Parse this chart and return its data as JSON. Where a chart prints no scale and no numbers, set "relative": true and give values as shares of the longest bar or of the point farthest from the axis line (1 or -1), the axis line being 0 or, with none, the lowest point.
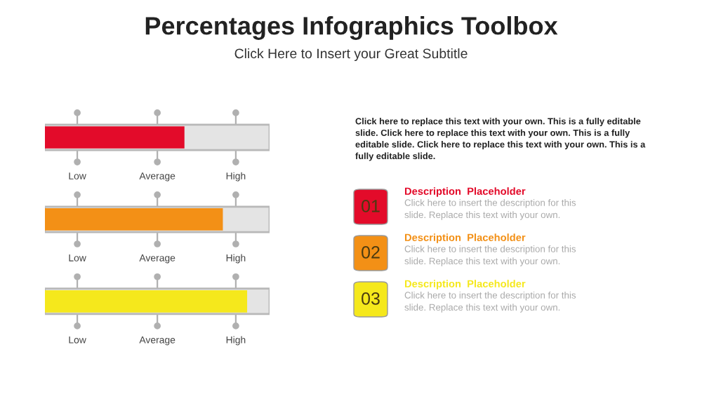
{
  "chart_data": {
    "type": "bar",
    "orientation": "horizontal",
    "relative": true,
    "title": "Percentages Infographics Toolbox",
    "subtitle": "Click Here to Insert your Great Subtitle",
    "categories": [
      null,
      null,
      null
    ],
    "values": [
      0.69,
      0.88,
      1
    ],
    "colors": [
      "#e30b2a",
      "#f39016",
      "#f5e81c"
    ],
    "annotations": [
      "Low",
      "Average",
      "High",
      "Click here to replace this text with your own. This is a fully editable\nslide. Click here to replace this text with your own. This is a fully\neditable slide. Click here to replace this text with your own. This is a\nfully editable slide.",
      "01",
      "Description  Placeholder",
      "Click here to insert the description for this\nslide. Replace this text with your own.",
      "02",
      "Description  Placeholder",
      "Click here to insert the description for this\nslide. Replace this text with your own.",
      "03",
      "Description  Placeholder",
      "Click here to insert the description for this\nslide. Replace this text with your own."
    ]
  }
}
